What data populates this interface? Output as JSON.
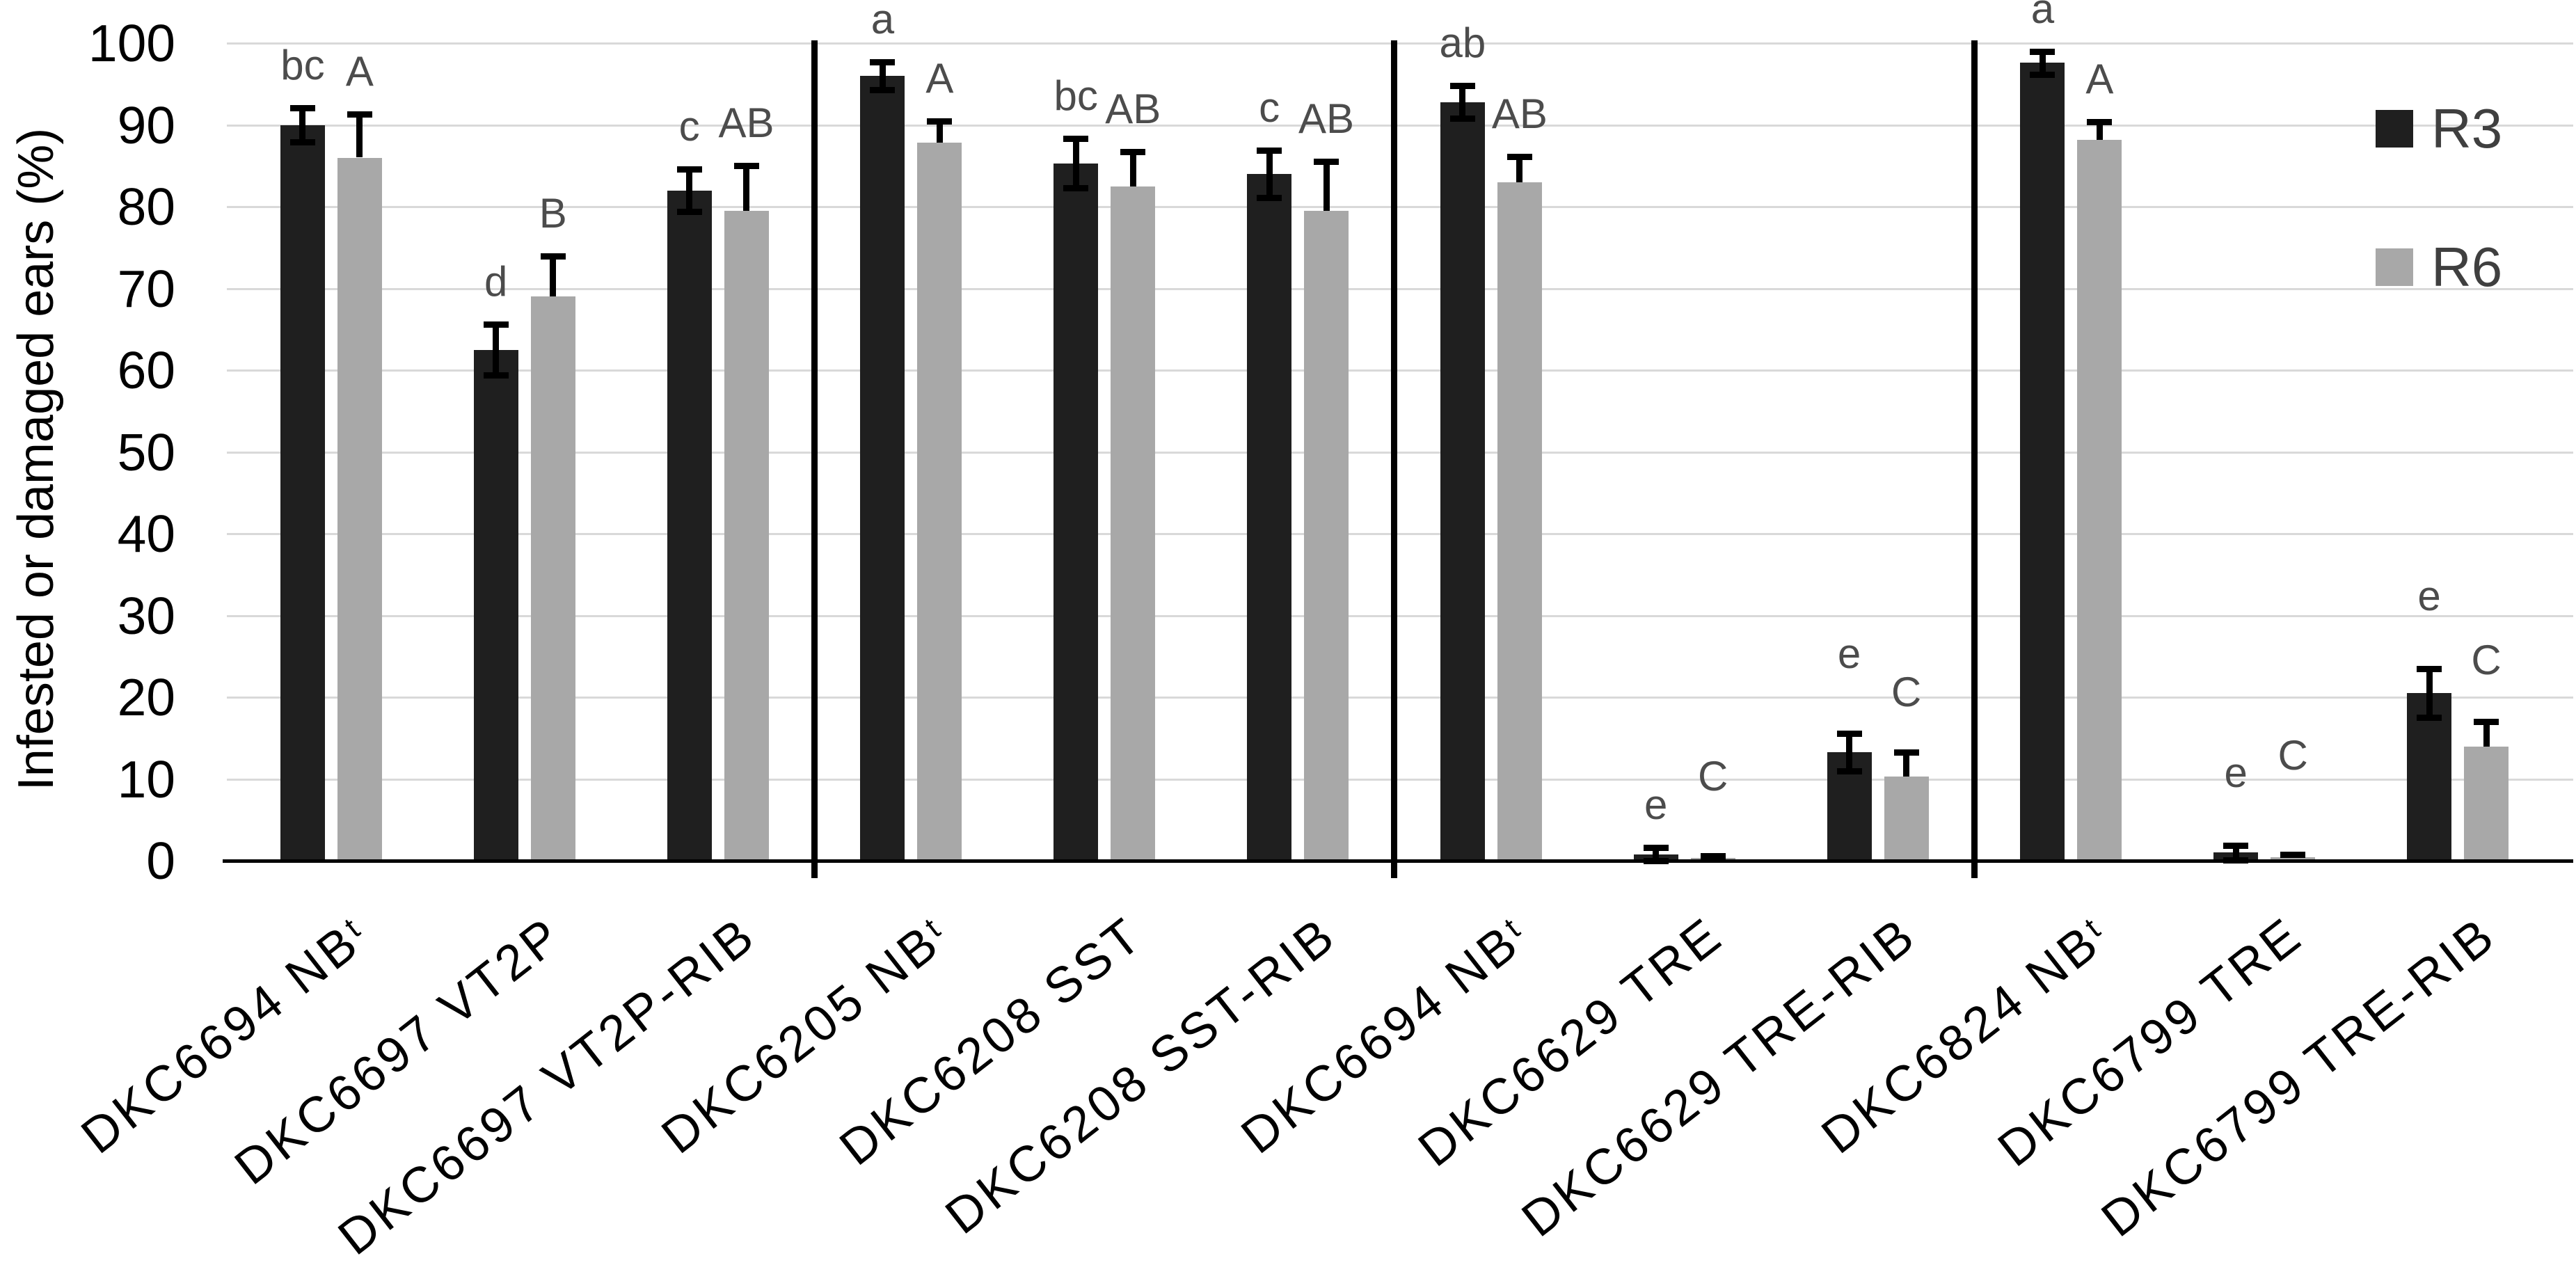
{
  "chart_data": {
    "type": "bar",
    "title": "",
    "ylabel": "Infested or damaged ears (%)",
    "xlabel": "",
    "ylim": [
      0,
      100
    ],
    "y_ticks": [
      0,
      10,
      20,
      30,
      40,
      50,
      60,
      70,
      80,
      90,
      100
    ],
    "grid": "horizontal",
    "legend_position": "top-right",
    "x_tick_rotation_deg": 38,
    "categories": [
      "DKC6694 NB^t",
      "DKC6697 VT2P",
      "DKC6697 VT2P-RIB",
      "DKC6205 NB^t",
      "DKC6208 SST",
      "DKC6208 SST-RIB",
      "DKC6694 NB^t",
      "DKC6629 TRE",
      "DKC6629 TRE-RIB",
      "DKC6824 NB^t",
      "DKC6799 TRE",
      "DKC6799 TRE-RIB"
    ],
    "group_separators_after": [
      3,
      6,
      9
    ],
    "series": [
      {
        "name": "R3",
        "color": "#1f1f1f",
        "error_style": "plus-minus",
        "values": [
          90,
          62.5,
          82,
          96,
          85.3,
          84,
          92.8,
          0.8,
          13.3,
          97.6,
          1.0,
          20.5
        ],
        "errors": [
          2.1,
          3.1,
          2.6,
          1.7,
          3.0,
          2.9,
          2.0,
          0.8,
          2.3,
          1.4,
          0.9,
          3.0
        ],
        "letters": [
          "bc",
          "d",
          "c",
          "a",
          "bc",
          "c",
          "ab",
          "e",
          "e",
          "a",
          "e",
          "e"
        ],
        "letter_y": [
          null,
          null,
          null,
          null,
          null,
          null,
          null,
          null,
          22.6,
          null,
          8.1,
          29.7
        ]
      },
      {
        "name": "R6",
        "color": "#a8a8a8",
        "error_style": "plus-only",
        "values": [
          86,
          69,
          79.5,
          87.8,
          82.5,
          79.5,
          83,
          0.3,
          10.3,
          88.2,
          0.4,
          14
        ],
        "errors": [
          5.3,
          5.0,
          5.5,
          2.7,
          4.2,
          6.0,
          3.1,
          0.3,
          3.0,
          2.2,
          0.4,
          3.0
        ],
        "letters": [
          "A",
          "B",
          "AB",
          "A",
          "AB",
          "AB",
          "AB",
          "C",
          "C",
          "A",
          "C",
          "C"
        ],
        "letter_y": [
          null,
          null,
          null,
          null,
          null,
          null,
          null,
          7.7,
          18.0,
          null,
          10.2,
          21.9
        ]
      }
    ]
  }
}
